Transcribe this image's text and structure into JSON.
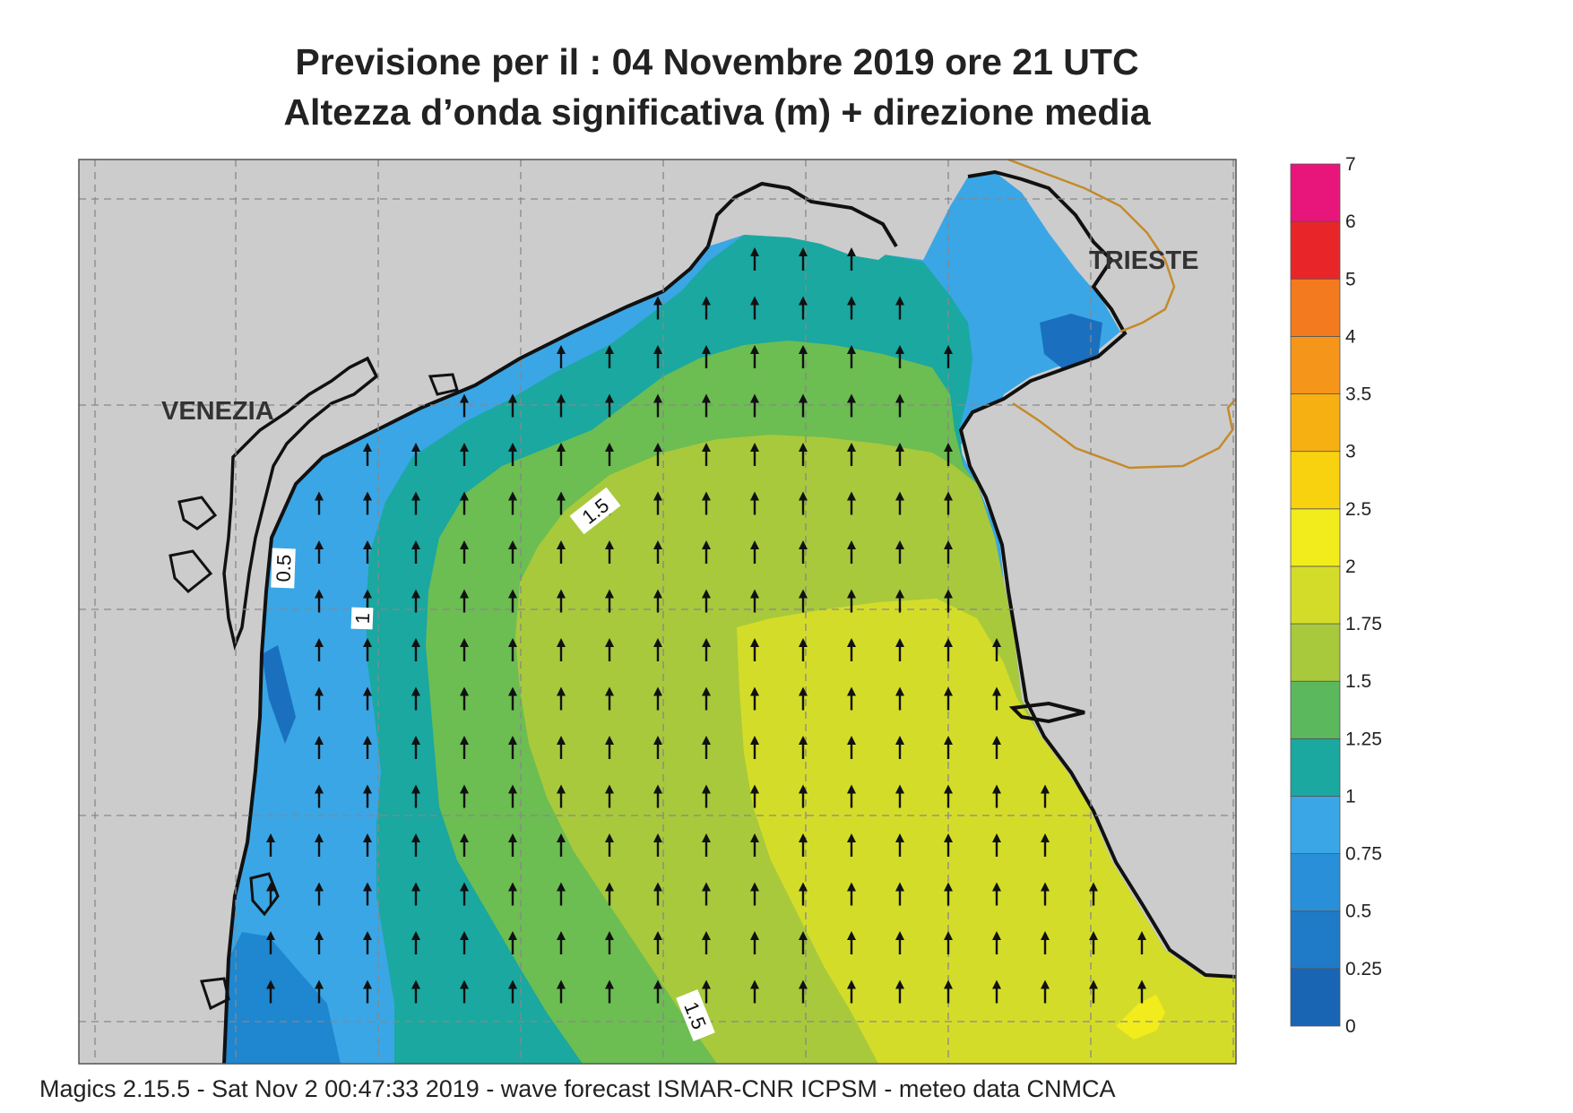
{
  "title": {
    "line1": "Previsione per il  :  04 Novembre  2019   ore 21 UTC",
    "line2": "Altezza d’onda significativa (m) + direzione media"
  },
  "cities": [
    {
      "name": "VENEZIA"
    },
    {
      "name": "TRIESTE"
    }
  ],
  "contour_labels": [
    "0.5",
    "1",
    "1.5",
    "1.5"
  ],
  "colorbar": {
    "ticks": [
      "0",
      "0.25",
      "0.5",
      "0.75",
      "1",
      "1.25",
      "1.5",
      "1.75",
      "2",
      "2.5",
      "3",
      "3.5",
      "4",
      "5",
      "6",
      "7"
    ],
    "colors": [
      "#1a64b4",
      "#1f7ac7",
      "#2a8fd9",
      "#3aa6e6",
      "#1aa8a0",
      "#5cb85c",
      "#a8c93c",
      "#d4dc2a",
      "#f2ec1c",
      "#f8d20e",
      "#f6b012",
      "#f5951a",
      "#f37a1e",
      "#e8262a",
      "#e8167a"
    ]
  },
  "colors": {
    "land": "#cccccc",
    "coast": "#111111",
    "border": "#c58a2a",
    "grid": "#888888",
    "arrow": "#111111"
  },
  "wave_direction": "north",
  "footer": "Magics 2.15.5 - Sat Nov  2 00:47:33 2019 - wave forecast  ISMAR-CNR  ICPSM - meteo data   CNMCA"
}
